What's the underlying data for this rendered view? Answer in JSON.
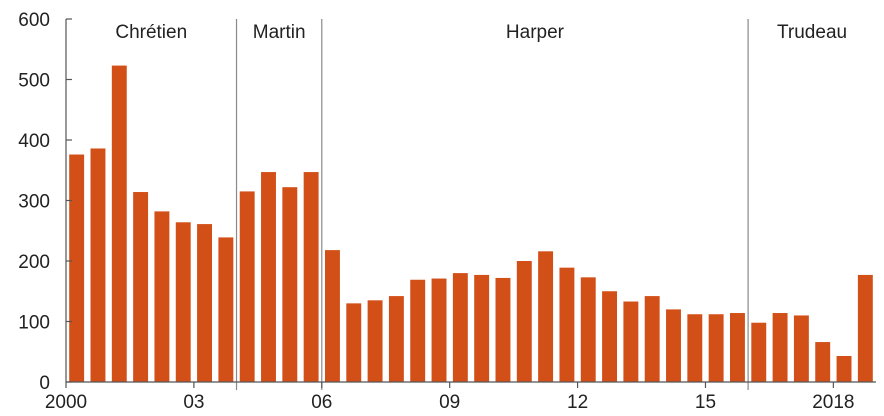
{
  "chart_data": {
    "type": "bar",
    "title": "",
    "xlabel": "",
    "ylabel": "",
    "ylim": [
      0,
      600
    ],
    "y_ticks": [
      0,
      100,
      200,
      300,
      400,
      500,
      600
    ],
    "bar_color": "#d24f17",
    "divider_color": "#8a8a8a",
    "grid": false,
    "first_period": "2000 Q1",
    "last_period": "2018 Q4",
    "periods_per_bar": "two quarters",
    "values": [
      376,
      386,
      523,
      314,
      282,
      264,
      261,
      239,
      315,
      347,
      322,
      347,
      218,
      130,
      135,
      142,
      169,
      171,
      180,
      177,
      172,
      200,
      216,
      189,
      173,
      150,
      133,
      142,
      120,
      112,
      112,
      114,
      98,
      114,
      110,
      66,
      43,
      177
    ],
    "x_tick_labels": [
      {
        "label": "2000",
        "bar_boundary": 0
      },
      {
        "label": "03",
        "bar_boundary": 6
      },
      {
        "label": "06",
        "bar_boundary": 12
      },
      {
        "label": "09",
        "bar_boundary": 18
      },
      {
        "label": "12",
        "bar_boundary": 24
      },
      {
        "label": "15",
        "bar_boundary": 30
      },
      {
        "label": "2018",
        "bar_boundary": 36
      }
    ],
    "governments": [
      {
        "name": "Chrétien",
        "start_bar": 0,
        "end_bar": 8
      },
      {
        "name": "Martin",
        "start_bar": 8,
        "end_bar": 12
      },
      {
        "name": "Harper",
        "start_bar": 12,
        "end_bar": 32
      },
      {
        "name": "Trudeau",
        "start_bar": 32,
        "end_bar": 38
      }
    ]
  }
}
